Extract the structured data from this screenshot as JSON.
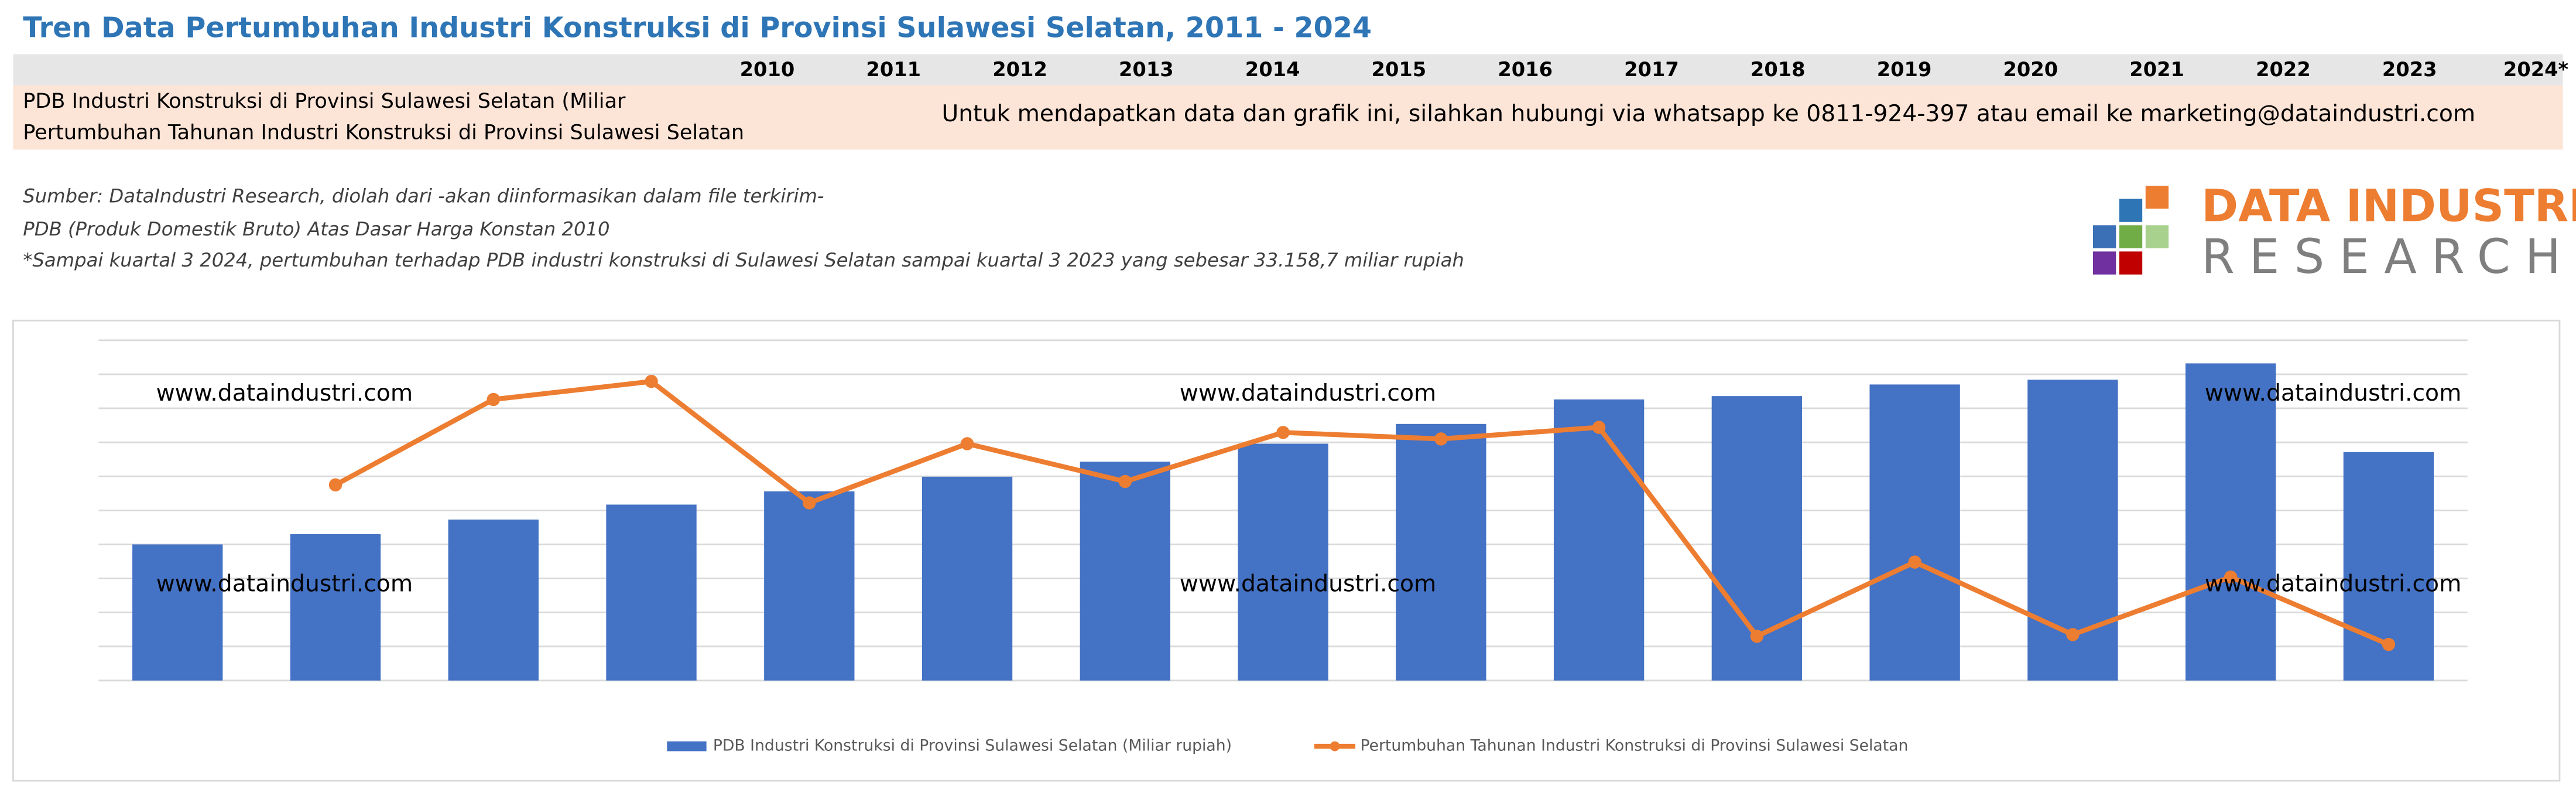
{
  "header": {
    "title": "Tren Data Pertumbuhan Industri Konstruksi di Provinsi Sulawesi Selatan, 2011 - 2024"
  },
  "table": {
    "years": [
      "2010",
      "2011",
      "2012",
      "2013",
      "2014",
      "2015",
      "2016",
      "2017",
      "2018",
      "2019",
      "2020",
      "2021",
      "2022",
      "2023",
      "2024*"
    ],
    "rows": [
      "PDB Industri Konstruksi di Provinsi Sulawesi Selatan (Miliar",
      "Pertumbuhan Tahunan Industri Konstruksi di Provinsi Sulawesi Selatan"
    ],
    "message": "Untuk mendapatkan data dan grafik ini, silahkan hubungi via whatsapp ke 0811-924-397 atau email ke marketing@dataindustri.com"
  },
  "notes": [
    "Sumber: DataIndustri Research, diolah dari -akan diinformasikan dalam file terkirim-",
    "PDB (Produk Domestik Bruto) Atas Dasar Harga Konstan 2010",
    "*Sampai kuartal 3 2024, pertumbuhan terhadap PDB industri konstruksi di Sulawesi Selatan sampai kuartal 3 2023 yang sebesar 33.158,7 miliar rupiah"
  ],
  "logo": {
    "line1": "DATA INDUSTRI",
    "line2": "RESEARCH"
  },
  "watermarks": [
    "www.dataindustri.com",
    "www.dataindustri.com",
    "www.dataindustri.com",
    "www.dataindustri.com",
    "www.dataindustri.com",
    "www.dataindustri.com"
  ],
  "chart_data": {
    "type": "combo",
    "ylim": [
      0,
      10
    ],
    "yticks": [
      0,
      1,
      2,
      3,
      4,
      5,
      6,
      7,
      8,
      9,
      10
    ],
    "grid": true,
    "series": [
      {
        "name": "PDB Industri Konstruksi di Provinsi Sulawesi Selatan (Miliar rupiah)",
        "color": "#4472c4",
        "type": "bar",
        "values": [
          4.0,
          4.3,
          4.73,
          5.17,
          5.56,
          5.99,
          6.43,
          6.96,
          7.54,
          8.26,
          8.36,
          8.7,
          8.84,
          9.32,
          6.71
        ]
      },
      {
        "name": "Pertumbuhan Tahunan Industri Konstruksi di Provinsi Sulawesi Selatan",
        "color": "#ed7d31",
        "type": "line",
        "values": [
          null,
          5.75,
          8.26,
          8.79,
          5.22,
          6.96,
          5.85,
          7.29,
          7.1,
          7.44,
          1.3,
          3.48,
          1.35,
          3.04,
          1.06
        ]
      }
    ]
  }
}
